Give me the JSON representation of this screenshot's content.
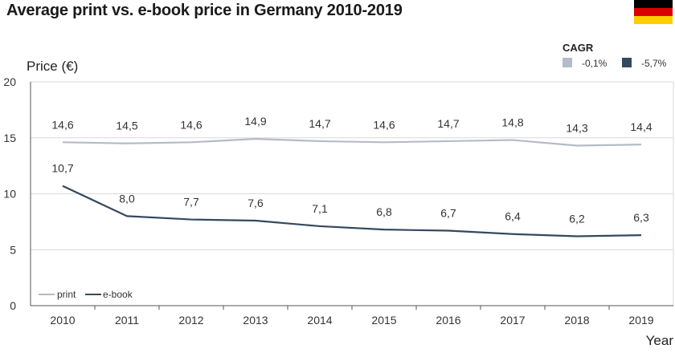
{
  "header": {
    "title": "Average print vs. e-book price in Germany 2010-2019"
  },
  "flag": {
    "name": "germany-flag",
    "colors": [
      "#000000",
      "#DD0000",
      "#FFCE00"
    ]
  },
  "colors": {
    "print": "#b3bcc8",
    "ebook": "#34495e",
    "grid": "#d9d9d9",
    "axis": "#555555"
  },
  "chart_data": {
    "type": "line",
    "title": "Average print vs. e-book price in Germany 2010-2019",
    "ylabel": "Price (€)",
    "xlabel": "Year",
    "ylim": [
      0,
      20
    ],
    "yticks": [
      "0",
      "5",
      "10",
      "15",
      "20"
    ],
    "categories": [
      "2010",
      "2011",
      "2012",
      "2013",
      "2014",
      "2015",
      "2016",
      "2017",
      "2018",
      "2019"
    ],
    "grid": true,
    "legend_position": "bottom-left",
    "series": [
      {
        "name": "print",
        "values": [
          14.6,
          14.5,
          14.6,
          14.9,
          14.7,
          14.6,
          14.7,
          14.8,
          14.3,
          14.4
        ],
        "labels": [
          "14,6",
          "14,5",
          "14,6",
          "14,9",
          "14,7",
          "14,6",
          "14,7",
          "14,8",
          "14,3",
          "14,4"
        ]
      },
      {
        "name": "e-book",
        "values": [
          10.7,
          8.0,
          7.7,
          7.6,
          7.1,
          6.8,
          6.7,
          6.4,
          6.2,
          6.3
        ],
        "labels": [
          "10,7",
          "8,0",
          "7,7",
          "7,6",
          "7,1",
          "6,8",
          "6,7",
          "6,4",
          "6,2",
          "6,3"
        ]
      }
    ],
    "cagr": {
      "title": "CAGR",
      "print": "-0,1%",
      "ebook": "-5,7%"
    }
  }
}
